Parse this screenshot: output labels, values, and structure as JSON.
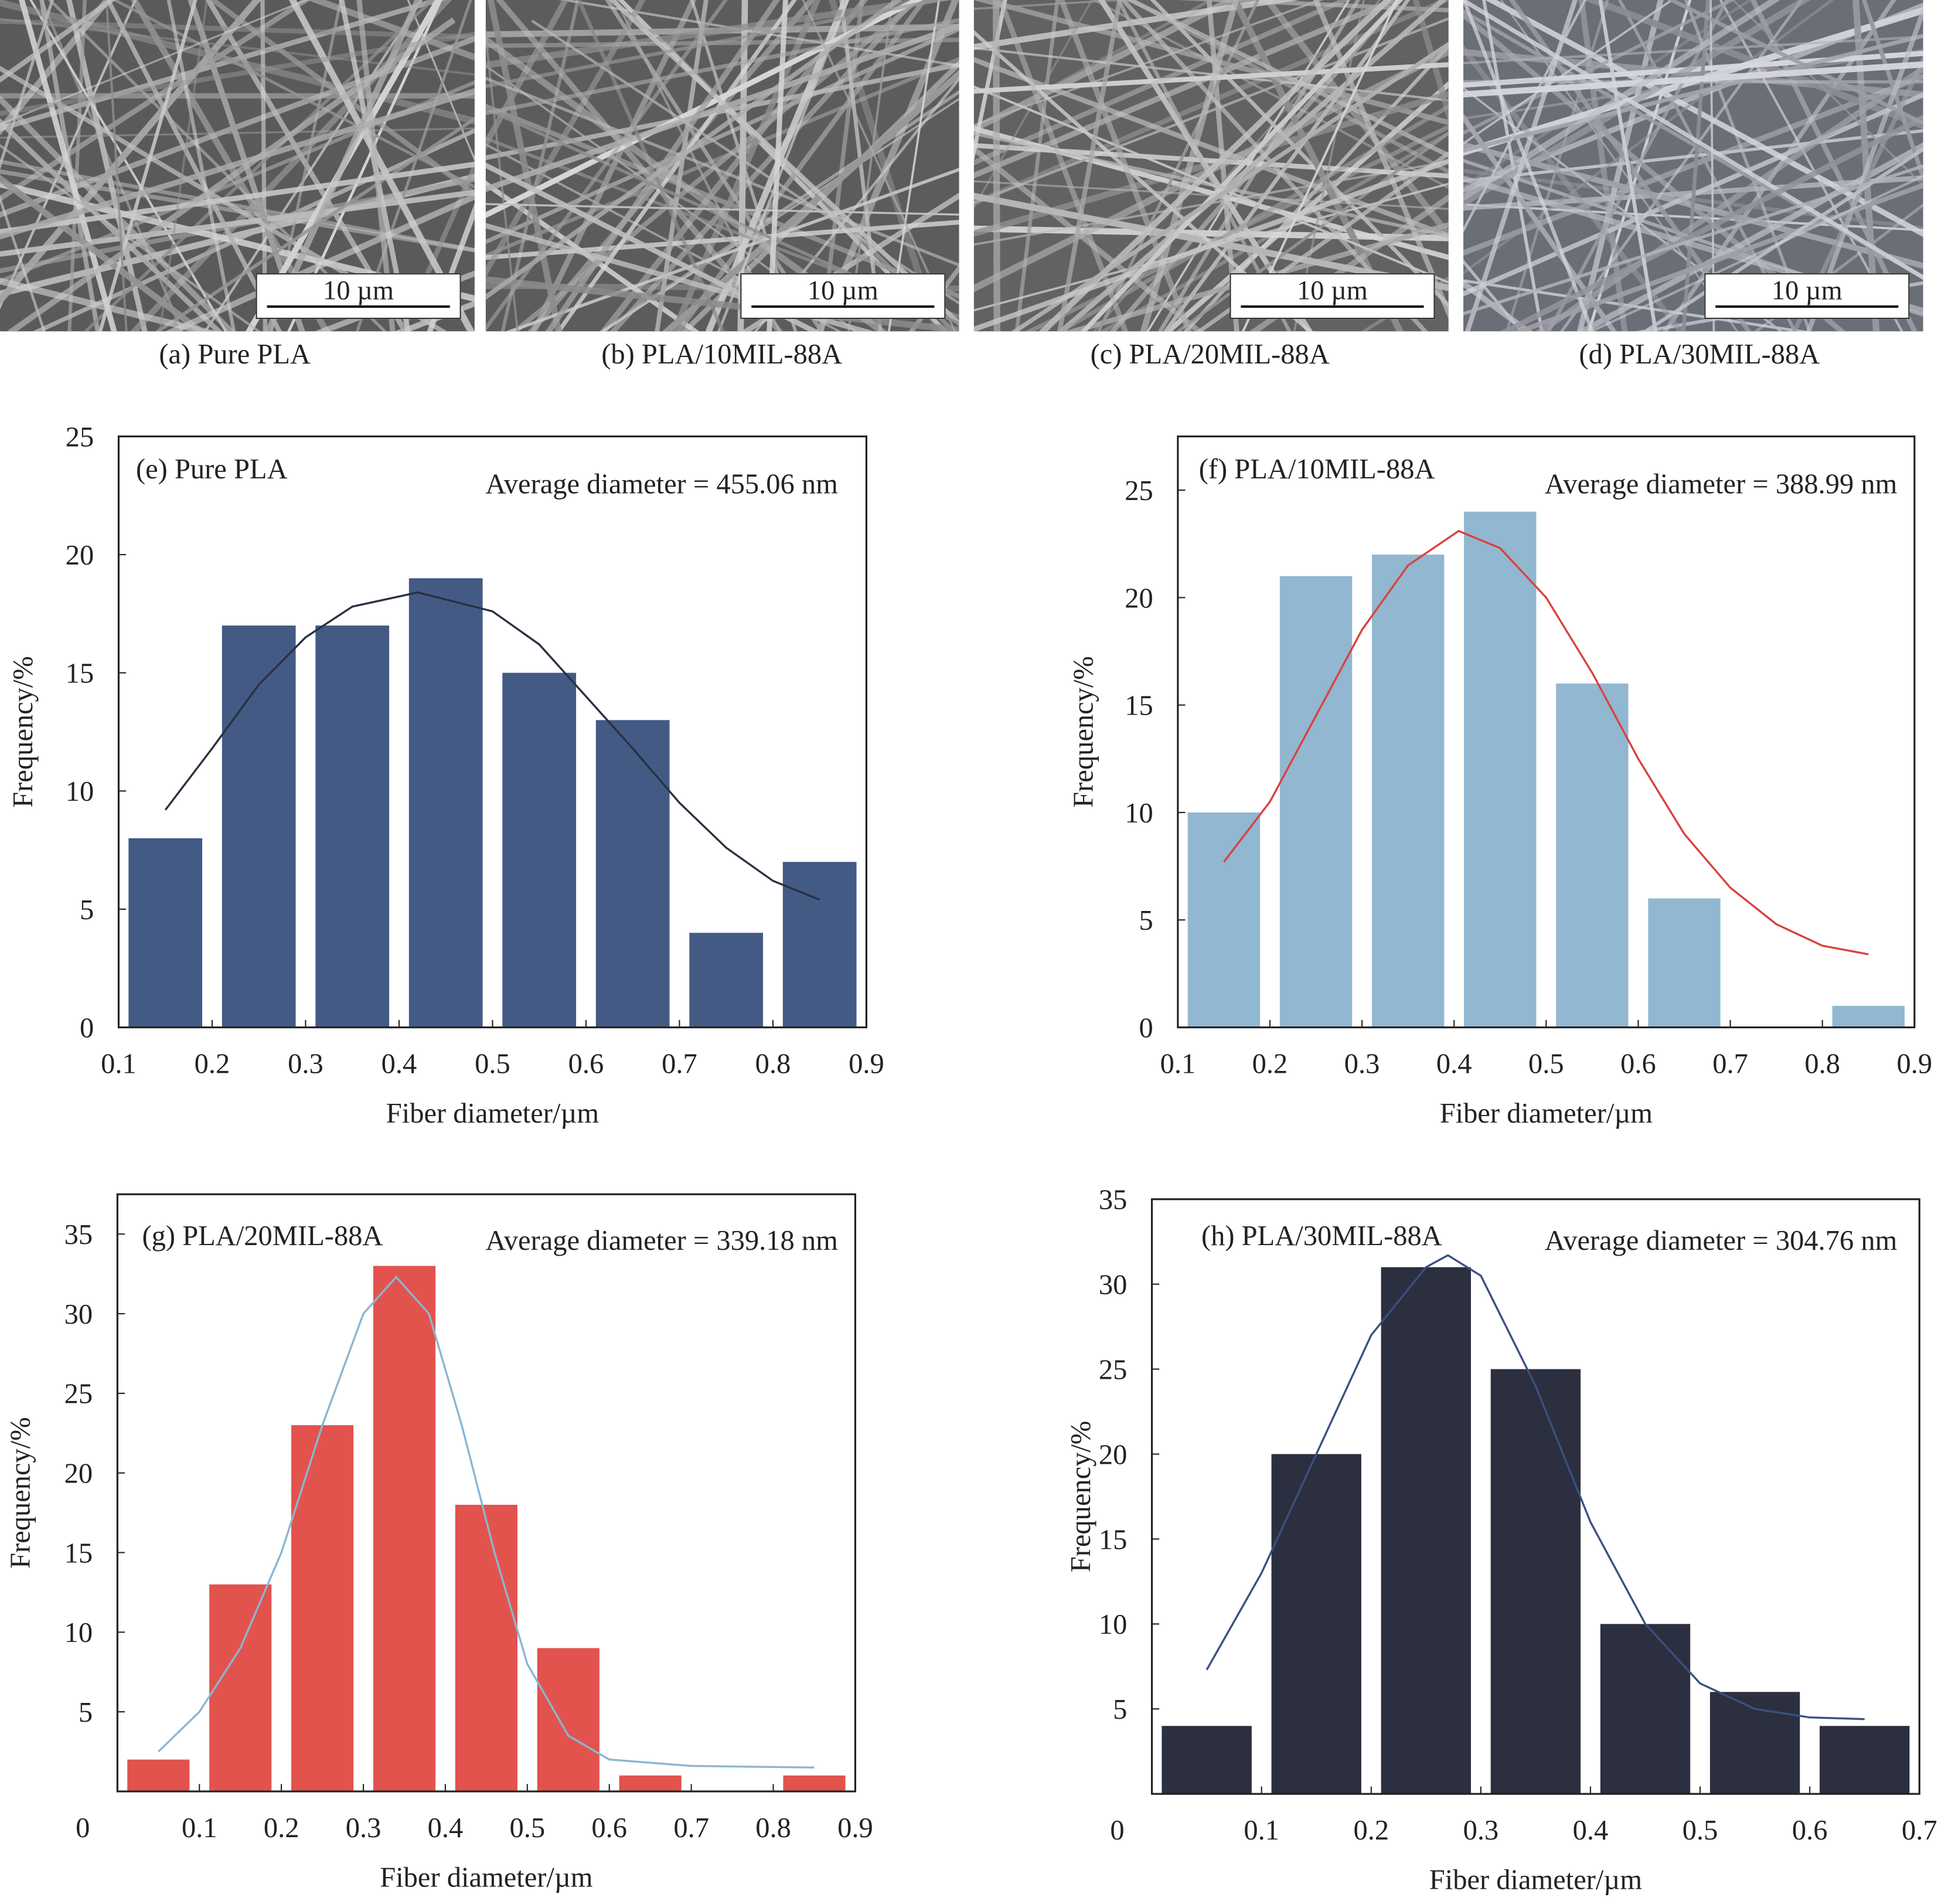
{
  "sem_panels": [
    {
      "scale_bar": "10 µm",
      "caption": "(a) Pure PLA",
      "tone": "#5a5a5a"
    },
    {
      "scale_bar": "10 µm",
      "caption": "(b) PLA/10MIL-88A",
      "tone": "#5c5c5c"
    },
    {
      "scale_bar": "10 µm",
      "caption": "(c) PLA/20MIL-88A",
      "tone": "#626262"
    },
    {
      "scale_bar": "10 µm",
      "caption": "(d) PLA/30MIL-88A",
      "tone": "#6a6e76"
    }
  ],
  "chart_data": [
    {
      "type": "bar",
      "panel": "(e) Pure PLA",
      "annotation": "Average diameter = 455.06 nm",
      "xlabel": "Fiber diameter/µm",
      "ylabel": "Frequency/%",
      "xlim": [
        0.1,
        0.9
      ],
      "ylim": [
        0,
        25
      ],
      "xticks": [
        "0.1",
        "0.2",
        "0.3",
        "0.4",
        "0.5",
        "0.6",
        "0.7",
        "0.8",
        "0.9"
      ],
      "yticks": [
        "0",
        "5",
        "10",
        "15",
        "20",
        "25"
      ],
      "bin_starts": [
        0.1,
        0.2,
        0.3,
        0.4,
        0.5,
        0.6,
        0.7,
        0.8
      ],
      "values": [
        8,
        17,
        17,
        19,
        15,
        13,
        4,
        7
      ],
      "bar_color": "#435a84",
      "curve_color": "#2a3040",
      "fit_curve": [
        [
          0.15,
          9.2
        ],
        [
          0.2,
          11.8
        ],
        [
          0.25,
          14.5
        ],
        [
          0.3,
          16.5
        ],
        [
          0.35,
          17.8
        ],
        [
          0.42,
          18.4
        ],
        [
          0.5,
          17.6
        ],
        [
          0.55,
          16.2
        ],
        [
          0.6,
          14
        ],
        [
          0.65,
          11.8
        ],
        [
          0.7,
          9.5
        ],
        [
          0.75,
          7.6
        ],
        [
          0.8,
          6.2
        ],
        [
          0.85,
          5.4
        ]
      ]
    },
    {
      "type": "bar",
      "panel": "(f) PLA/10MIL-88A",
      "annotation": "Average diameter = 388.99 nm",
      "xlabel": "Fiber diameter/µm",
      "ylabel": "Frequency/%",
      "xlim": [
        0.1,
        0.9
      ],
      "ylim": [
        0,
        27.5
      ],
      "xticks": [
        "0.1",
        "0.2",
        "0.3",
        "0.4",
        "0.5",
        "0.6",
        "0.7",
        "0.8",
        "0.9"
      ],
      "yticks": [
        "0",
        "5",
        "10",
        "15",
        "20",
        "25"
      ],
      "bin_starts": [
        0.1,
        0.2,
        0.3,
        0.4,
        0.5,
        0.6,
        0.7,
        0.8
      ],
      "values": [
        10,
        21,
        22,
        24,
        16,
        6,
        0,
        1
      ],
      "bar_color": "#92b7d1",
      "curve_color": "#d9423d",
      "fit_curve": [
        [
          0.15,
          7.7
        ],
        [
          0.2,
          10.5
        ],
        [
          0.25,
          14.5
        ],
        [
          0.3,
          18.5
        ],
        [
          0.35,
          21.5
        ],
        [
          0.405,
          23.1
        ],
        [
          0.45,
          22.3
        ],
        [
          0.5,
          20
        ],
        [
          0.55,
          16.5
        ],
        [
          0.6,
          12.5
        ],
        [
          0.65,
          9
        ],
        [
          0.7,
          6.5
        ],
        [
          0.75,
          4.8
        ],
        [
          0.8,
          3.8
        ],
        [
          0.85,
          3.4
        ]
      ]
    },
    {
      "type": "bar",
      "panel": "(g) PLA/20MIL-88A",
      "annotation": "Average diameter = 339.18 nm",
      "xlabel": "Fiber diameter/µm",
      "ylabel": "Frequency/%",
      "xlim": [
        0,
        0.9
      ],
      "ylim": [
        0,
        37.5
      ],
      "xticks": [
        "0",
        "0.1",
        "0.2",
        "0.3",
        "0.4",
        "0.5",
        "0.6",
        "0.7",
        "0.8",
        "0.9"
      ],
      "yticks": [
        "5",
        "10",
        "15",
        "20",
        "25",
        "30",
        "35"
      ],
      "bin_starts": [
        0,
        0.1,
        0.2,
        0.3,
        0.4,
        0.5,
        0.6,
        0.7,
        0.8
      ],
      "values": [
        2,
        13,
        23,
        33,
        18,
        9,
        1,
        0,
        1
      ],
      "bar_color": "#e2534d",
      "curve_color": "#8ab6d4",
      "fit_curve": [
        [
          0.05,
          2.5
        ],
        [
          0.1,
          5
        ],
        [
          0.15,
          9
        ],
        [
          0.2,
          15
        ],
        [
          0.25,
          23
        ],
        [
          0.3,
          30
        ],
        [
          0.34,
          32.3
        ],
        [
          0.38,
          30
        ],
        [
          0.42,
          23
        ],
        [
          0.46,
          15
        ],
        [
          0.5,
          8
        ],
        [
          0.55,
          3.5
        ],
        [
          0.6,
          2
        ],
        [
          0.7,
          1.6
        ],
        [
          0.85,
          1.5
        ]
      ]
    },
    {
      "type": "bar",
      "panel": "(h) PLA/30MIL-88A",
      "annotation": "Average diameter = 304.76 nm",
      "xlabel": "Fiber diameter/µm",
      "ylabel": "Frequency/%",
      "xlim": [
        0,
        0.7
      ],
      "ylim": [
        0,
        35
      ],
      "xticks": [
        "0",
        "0.1",
        "0.2",
        "0.3",
        "0.4",
        "0.5",
        "0.6",
        "0.7"
      ],
      "yticks": [
        "5",
        "10",
        "15",
        "20",
        "25",
        "30",
        "35"
      ],
      "bin_starts": [
        0,
        0.1,
        0.2,
        0.3,
        0.4,
        0.5,
        0.6
      ],
      "values": [
        4,
        20,
        31,
        25,
        10,
        6,
        4
      ],
      "bar_color": "#2b2f3f",
      "curve_color": "#3a5080",
      "fit_curve": [
        [
          0.05,
          7.3
        ],
        [
          0.1,
          13
        ],
        [
          0.15,
          20
        ],
        [
          0.2,
          27
        ],
        [
          0.25,
          31
        ],
        [
          0.27,
          31.7
        ],
        [
          0.3,
          30.5
        ],
        [
          0.35,
          24
        ],
        [
          0.4,
          16
        ],
        [
          0.45,
          10
        ],
        [
          0.5,
          6.5
        ],
        [
          0.55,
          5
        ],
        [
          0.6,
          4.5
        ],
        [
          0.65,
          4.4
        ]
      ]
    }
  ]
}
